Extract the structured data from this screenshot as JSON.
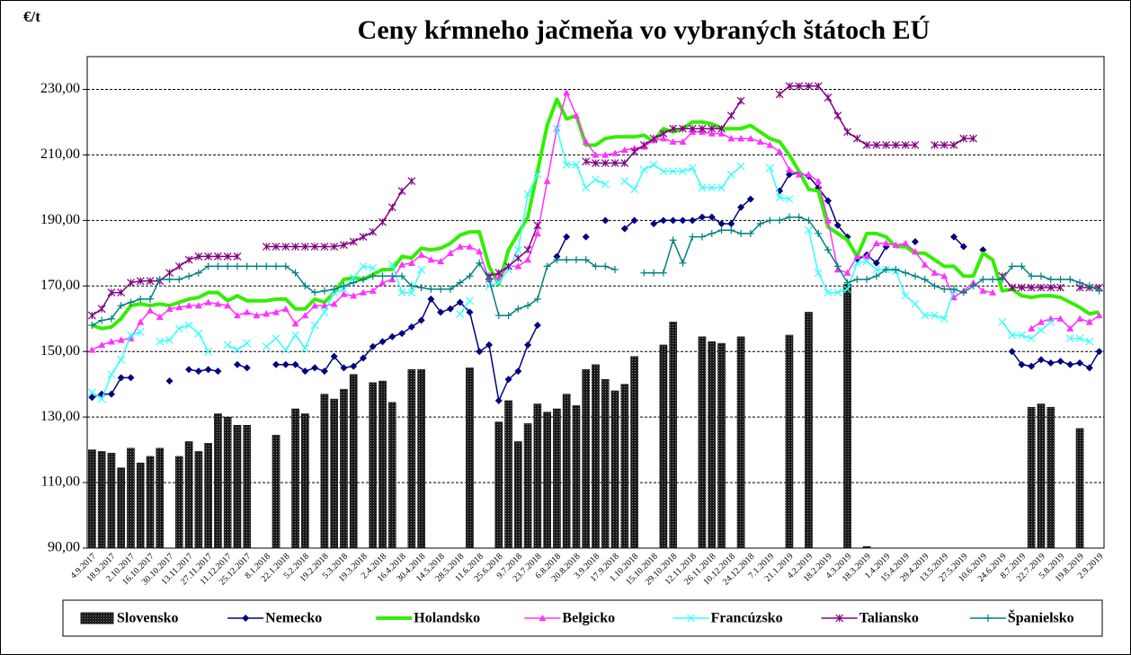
{
  "chart_data": {
    "type": "combo",
    "title": "Ceny kŕmneho jačmeňa vo vybraných štátoch EÚ",
    "y_label": "€/t",
    "categories": [
      "4.9.2017",
      null,
      "18.9.2017",
      null,
      "2.10.2017",
      null,
      "16.10.2017",
      null,
      "30.10.2017",
      null,
      "13.11.2017",
      null,
      "27.11.2017",
      null,
      "11.12.2017",
      null,
      "25.12.2017",
      null,
      "8.1.2018",
      null,
      "22.1.2018",
      null,
      "5.2.2018",
      null,
      "19.2.2018",
      null,
      "5.3.2018",
      null,
      "19.3.2018",
      null,
      "2.4.2018",
      null,
      "16.4.2018",
      null,
      "30.4.2018",
      null,
      "14.5.2018",
      null,
      "28.5.2018",
      null,
      "11.6.2018",
      null,
      "25.6.2018",
      null,
      "9.7.2018",
      null,
      "23.7.2018",
      null,
      "6.8.2018",
      null,
      "20.8.2018",
      null,
      "3.9.2018",
      null,
      "17.9.2018",
      null,
      "1.10.2018",
      null,
      "15.10.2018",
      null,
      "29.10.2018",
      null,
      "12.11.2018",
      null,
      "26.11.2018",
      null,
      "10.12.2018",
      null,
      "24.12.2018",
      null,
      "7.1.2019",
      null,
      "21.1.2019",
      null,
      "4.2.2019",
      null,
      "18.2.2019",
      null,
      "4.3.2019",
      null,
      "18.3.2019",
      null,
      "1.4.2019",
      null,
      "15.4.2019",
      null,
      "29.4.2019",
      null,
      "13.5.2019",
      null,
      "27.5.2019",
      null,
      "10.6.2019",
      null,
      "24.6.2019",
      null,
      "8.7.2019",
      null,
      "22.7.2019",
      null,
      "5.8.2019",
      null,
      "19.8.2019",
      null,
      "2.9.2019"
    ],
    "ylim": [
      90,
      240
    ],
    "yticks": [
      {
        "value": 90,
        "label": "90,00"
      },
      {
        "value": 110,
        "label": "110,00"
      },
      {
        "value": 130,
        "label": "130,00"
      },
      {
        "value": 150,
        "label": "150,00"
      },
      {
        "value": 170,
        "label": "170,00"
      },
      {
        "value": 190,
        "label": "190,00"
      },
      {
        "value": 210,
        "label": "210,00"
      },
      {
        "value": 230,
        "label": "230,00"
      }
    ],
    "grid": true,
    "legend": "bottom",
    "series": [
      {
        "name": "Slovensko",
        "type": "bar",
        "color": "#1a1a1a",
        "values": [
          120,
          119.5,
          119,
          114.5,
          120.5,
          116,
          118,
          120.5,
          null,
          118,
          122.5,
          119.5,
          122,
          131,
          130,
          127.5,
          127.5,
          null,
          null,
          124.5,
          null,
          132.5,
          131,
          null,
          137,
          135.5,
          138.5,
          143,
          null,
          140.5,
          141,
          134.5,
          null,
          144.5,
          144.5,
          null,
          null,
          null,
          null,
          145,
          null,
          null,
          128.5,
          135,
          122.5,
          128,
          134,
          131.5,
          132.5,
          137,
          133.5,
          144.5,
          146,
          141.5,
          138,
          140,
          148.5,
          null,
          null,
          152,
          159,
          null,
          null,
          154.5,
          153,
          152.5,
          null,
          154.5,
          null,
          null,
          null,
          null,
          155,
          null,
          162,
          null,
          null,
          null,
          170.5,
          null,
          90.5,
          null,
          null,
          null,
          null,
          null,
          null,
          null,
          null,
          null,
          null,
          null,
          null,
          null,
          null,
          null,
          null,
          133,
          134,
          133,
          null,
          null,
          126.5,
          null,
          null
        ]
      },
      {
        "name": "Nemecko",
        "type": "line",
        "marker": "diamond",
        "color": "#000080",
        "values": [
          136,
          137,
          137,
          142,
          142,
          null,
          null,
          null,
          141,
          null,
          144.5,
          144,
          144.5,
          144,
          null,
          146,
          145,
          null,
          null,
          146,
          146,
          146,
          144,
          145,
          144,
          148.5,
          145,
          145.5,
          148,
          151.5,
          153,
          154.5,
          155.5,
          157.5,
          159.5,
          166,
          162,
          163,
          165,
          162,
          150,
          152,
          135,
          141.5,
          144,
          152,
          158,
          null,
          179,
          185,
          null,
          185,
          null,
          190,
          null,
          187.5,
          190,
          null,
          189,
          190,
          190,
          190,
          190,
          191,
          191,
          189,
          189,
          194,
          196.5,
          null,
          null,
          199,
          204,
          204.5,
          203.5,
          200,
          196,
          188.5,
          185,
          178,
          179.5,
          177,
          182,
          null,
          null,
          183.5,
          null,
          null,
          null,
          185,
          182,
          null,
          181,
          null,
          null,
          150,
          146,
          145.5,
          147.5,
          146.5,
          147,
          146,
          146.5,
          145,
          150
        ]
      },
      {
        "name": "Holandsko",
        "type": "line",
        "marker": "none",
        "color": "#33ee00",
        "values": [
          158,
          157,
          157.5,
          160,
          164,
          164.5,
          164,
          164.5,
          164,
          165,
          166,
          166.5,
          168,
          168,
          165.5,
          167,
          165.5,
          165.5,
          165.5,
          166,
          166,
          163,
          163,
          166,
          165,
          168,
          172,
          172.5,
          172,
          173.5,
          175,
          175,
          179,
          178.5,
          181.5,
          181,
          181.5,
          183,
          185.5,
          186.5,
          186.5,
          176,
          170.5,
          181,
          186,
          191,
          205,
          219,
          227,
          221,
          222,
          213,
          213,
          215,
          215.5,
          215.5,
          215.5,
          216,
          214,
          218,
          217,
          218,
          220,
          220,
          219.5,
          218,
          218,
          218,
          219,
          217,
          215,
          214,
          210,
          205,
          199.5,
          199,
          188,
          186,
          184,
          179,
          186,
          186,
          185,
          182,
          182,
          180,
          180,
          178,
          176,
          176,
          173,
          173,
          180,
          178,
          168.5,
          169,
          167,
          166.5,
          167,
          167,
          166.5,
          165,
          163.5,
          161.5,
          162
        ]
      },
      {
        "name": "Belgicko",
        "type": "line",
        "marker": "triangle",
        "color": "#ff33ff",
        "values": [
          150.5,
          152,
          153,
          153.5,
          154,
          159,
          162.5,
          160.5,
          163,
          163.5,
          164,
          164,
          165,
          164.5,
          164,
          161,
          162,
          161,
          161.5,
          162,
          163,
          158.5,
          161,
          164,
          164,
          164.5,
          167.5,
          167,
          168,
          168.5,
          171,
          172,
          176.5,
          177,
          179.5,
          178,
          177.5,
          180,
          182,
          182,
          180.5,
          172,
          172.5,
          176,
          176,
          178,
          186,
          202,
          218,
          229,
          222,
          214,
          210,
          210,
          210.5,
          211.5,
          212,
          212.5,
          214.5,
          215,
          214,
          214,
          217,
          217,
          216.5,
          216.5,
          215,
          215,
          215,
          214,
          213,
          211,
          205.5,
          204,
          204,
          202,
          190,
          175,
          174,
          179,
          179,
          183,
          183,
          182.5,
          183,
          180.5,
          176.5,
          174,
          173,
          166.5,
          168.5,
          171,
          168.5,
          168,
          null,
          null,
          null,
          157,
          159,
          160,
          160,
          157,
          160,
          159,
          161
        ]
      },
      {
        "name": "Francúzsko",
        "type": "line",
        "marker": "x",
        "color": "#33ffff",
        "values": [
          137.5,
          135.5,
          143,
          147.5,
          155,
          156,
          null,
          153,
          153.5,
          157,
          158,
          155.5,
          150,
          null,
          152,
          150.5,
          152.5,
          null,
          151.5,
          154,
          150.5,
          155,
          151,
          158,
          162,
          168,
          169,
          172.5,
          176,
          175.5,
          null,
          176.5,
          168,
          168,
          175,
          null,
          null,
          null,
          161.5,
          165.5,
          null,
          170,
          171,
          175,
          181,
          198,
          204,
          null,
          218,
          207,
          207,
          200,
          202.5,
          201,
          null,
          202,
          199.5,
          205.5,
          207,
          205,
          205,
          205,
          206,
          200,
          200,
          200,
          204,
          206.5,
          null,
          null,
          206,
          197,
          196.5,
          null,
          187,
          174,
          168,
          168,
          169,
          177,
          177.5,
          175,
          175,
          174.5,
          167,
          164.5,
          161,
          161,
          160,
          168.5,
          null,
          null,
          null,
          null,
          159,
          155,
          155,
          154,
          156.5,
          159,
          null,
          154,
          154,
          153,
          null
        ]
      },
      {
        "name": "Taliansko",
        "type": "line",
        "marker": "star",
        "color": "#800080",
        "values": [
          161,
          163,
          168,
          168,
          171,
          171.5,
          171.5,
          171.5,
          174,
          176,
          178,
          179,
          179,
          179,
          179,
          179,
          null,
          null,
          182,
          182,
          182,
          182,
          182,
          182,
          182,
          182,
          182.5,
          183.5,
          185,
          186.5,
          189.5,
          194,
          199,
          202,
          null,
          null,
          null,
          null,
          null,
          null,
          null,
          173,
          174,
          176,
          178.5,
          181,
          188.5,
          null,
          null,
          null,
          null,
          208,
          207.5,
          207.5,
          207.5,
          207.5,
          211,
          213,
          215,
          216.5,
          218,
          218,
          218,
          218,
          218,
          218,
          222,
          226.5,
          null,
          null,
          null,
          228.5,
          231,
          231,
          231,
          231,
          227.5,
          222,
          217,
          215,
          213,
          213,
          213,
          213,
          213,
          213,
          null,
          213,
          213,
          213,
          215,
          215,
          null,
          null,
          173,
          169.5,
          169.5,
          169.5,
          169.5,
          169.5,
          169.5,
          null,
          169.5,
          169.5,
          169.5
        ]
      },
      {
        "name": "Španielsko",
        "type": "line",
        "marker": "plus",
        "color": "#008080",
        "values": [
          158,
          159.5,
          160,
          164,
          165,
          166,
          166,
          172,
          172,
          172,
          173,
          174,
          176,
          176,
          176,
          176,
          176,
          176,
          176,
          176,
          176,
          174,
          170,
          168,
          168.5,
          169,
          170,
          171,
          172,
          173,
          173,
          173,
          173,
          170,
          169.5,
          169,
          169,
          169,
          171,
          173,
          177,
          172,
          161,
          161,
          163,
          164,
          166,
          176,
          178,
          178,
          178,
          178,
          176,
          176,
          175,
          null,
          null,
          174,
          174,
          174,
          184,
          177,
          185,
          185,
          186,
          187,
          187,
          186,
          186,
          189,
          190,
          190,
          191,
          191,
          190,
          186,
          181,
          176,
          171,
          172,
          172,
          173,
          175,
          175,
          174,
          173,
          172,
          170,
          169,
          169,
          168,
          170,
          172,
          172,
          172,
          176,
          176,
          173,
          173,
          172,
          172,
          172,
          171,
          170,
          168.5
        ]
      }
    ]
  }
}
